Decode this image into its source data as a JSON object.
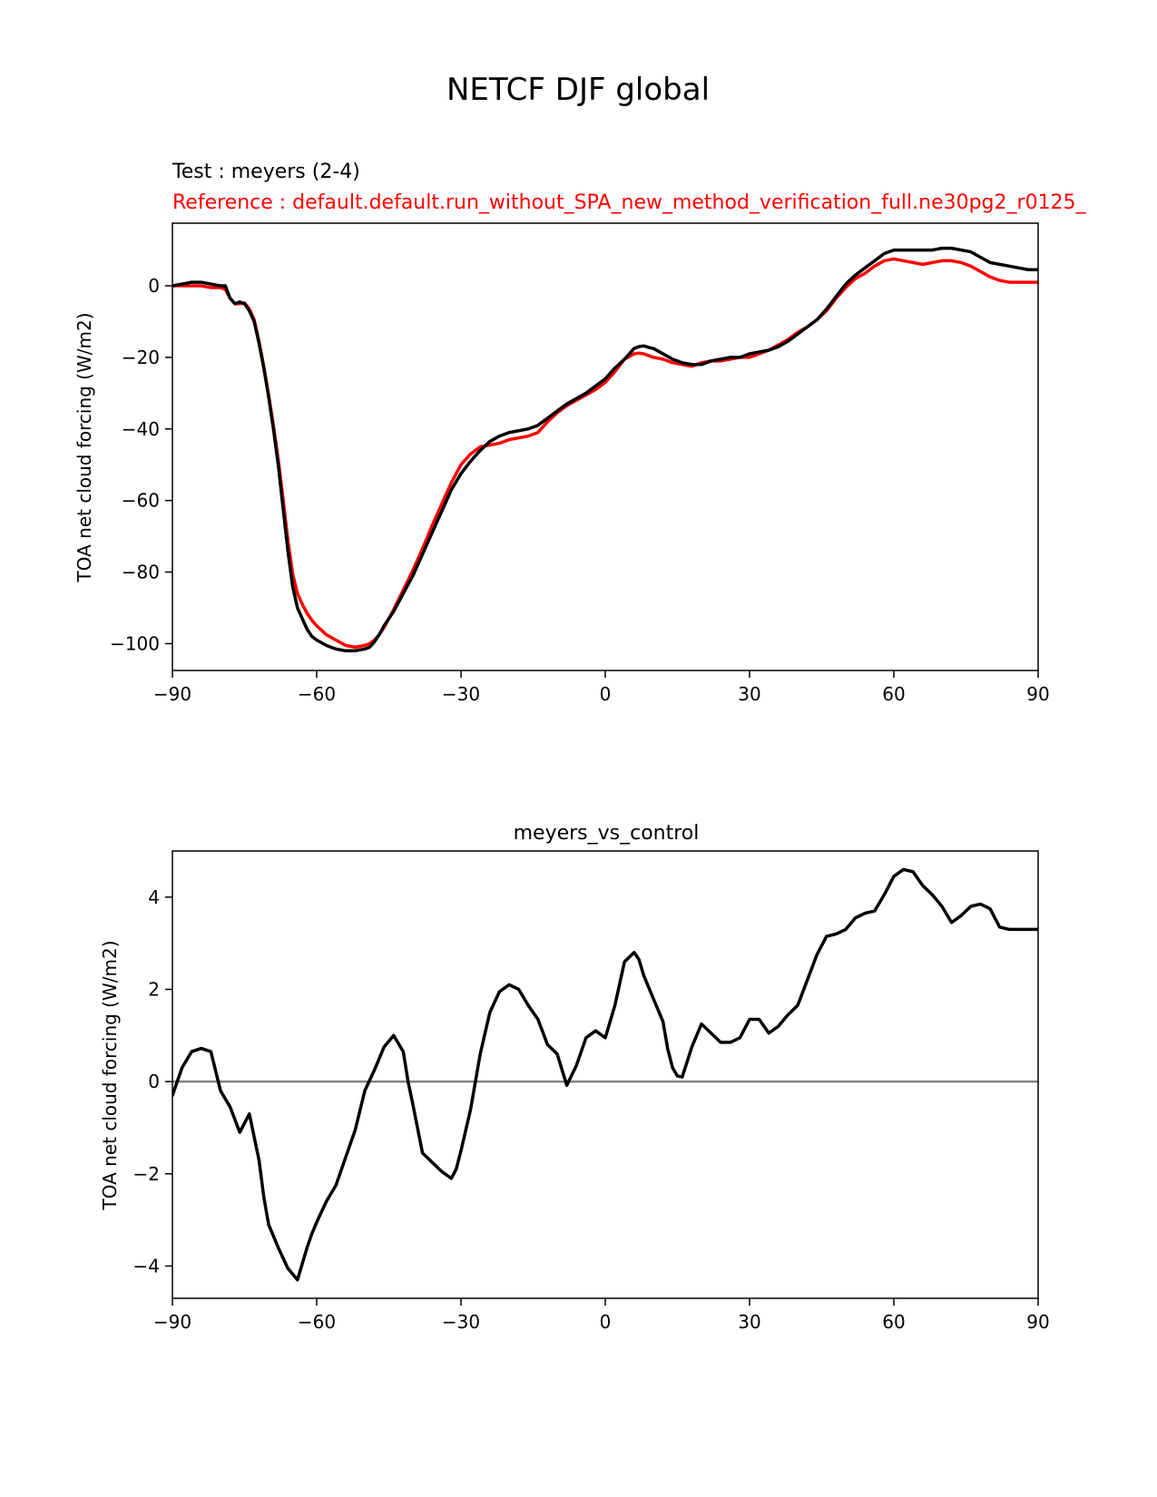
{
  "figure": {
    "title": "NETCF DJF global"
  },
  "colors": {
    "test": "#000000",
    "reference": "#ff0000",
    "zero_line": "#808080",
    "axis": "#000000"
  },
  "chart_data": [
    {
      "type": "line",
      "test_label": "Test : meyers (2-4)",
      "reference_label": "Reference : default.default.run_without_SPA_new_method_verification_full.ne30pg2_r0125_",
      "xlabel": "",
      "ylabel": "TOA net cloud forcing (W/m2)",
      "xlim": [
        -90,
        90
      ],
      "ylim": [
        -107.5,
        17.5
      ],
      "xticks": [
        -90,
        -60,
        -30,
        0,
        30,
        60,
        90
      ],
      "xtick_labels": [
        "−90",
        "−60",
        "−30",
        "0",
        "30",
        "60",
        "90"
      ],
      "yticks": [
        0,
        -20,
        -40,
        -60,
        -80,
        -100
      ],
      "ytick_labels": [
        "0",
        "−20",
        "−40",
        "−60",
        "−80",
        "−100"
      ],
      "series": [
        {
          "name": "Test",
          "color": "#000000",
          "x": [
            -90,
            -88,
            -86,
            -84,
            -82,
            -80,
            -79,
            -78,
            -77,
            -76,
            -75,
            -74,
            -73,
            -72,
            -71,
            -70,
            -69,
            -68,
            -67,
            -66,
            -65,
            -64,
            -63,
            -62,
            -61,
            -60,
            -58,
            -56,
            -54,
            -52,
            -50,
            -49,
            -48,
            -47,
            -46,
            -45,
            -44,
            -42,
            -40,
            -38,
            -36,
            -34,
            -32,
            -30,
            -28,
            -26,
            -24,
            -22,
            -20,
            -18,
            -16,
            -14,
            -12,
            -10,
            -8,
            -6,
            -4,
            -2,
            0,
            2,
            4,
            6,
            7,
            8,
            9,
            10,
            12,
            14,
            16,
            18,
            20,
            22,
            24,
            26,
            28,
            30,
            32,
            34,
            36,
            38,
            40,
            42,
            44,
            46,
            48,
            50,
            52,
            54,
            56,
            58,
            60,
            62,
            64,
            66,
            68,
            70,
            72,
            74,
            76,
            78,
            80,
            82,
            84,
            86,
            88,
            90
          ],
          "y": [
            0,
            0.5,
            1,
            1,
            0.5,
            0,
            0,
            -3.5,
            -5,
            -4.5,
            -5,
            -7,
            -10,
            -16,
            -23,
            -31,
            -40,
            -50,
            -62,
            -74,
            -84,
            -90,
            -93,
            -96,
            -98,
            -99,
            -100.5,
            -101.5,
            -102,
            -102,
            -101.5,
            -101,
            -99.5,
            -97.5,
            -95,
            -93,
            -91,
            -86,
            -81,
            -75,
            -69,
            -63,
            -57,
            -52.5,
            -49,
            -46,
            -43.5,
            -42,
            -41,
            -40.5,
            -40,
            -39,
            -37,
            -35,
            -33,
            -31.5,
            -30,
            -28,
            -26,
            -23,
            -20.5,
            -17.5,
            -17,
            -16.8,
            -17.2,
            -17.5,
            -19,
            -20.5,
            -21.5,
            -22,
            -22,
            -21,
            -20.5,
            -20,
            -20,
            -19,
            -18.5,
            -18,
            -17,
            -15.5,
            -13.5,
            -11.5,
            -9.5,
            -6.5,
            -3,
            0.5,
            3,
            5,
            7,
            9,
            10,
            10,
            10,
            10,
            10,
            10.5,
            10.5,
            10,
            9.5,
            8,
            6.5,
            6,
            5.5,
            5,
            4.5,
            4.5
          ]
        },
        {
          "name": "Reference",
          "color": "#ff0000",
          "x": [
            -90,
            -88,
            -86,
            -84,
            -82,
            -80,
            -79,
            -78,
            -77,
            -76,
            -75,
            -74,
            -73,
            -72,
            -71,
            -70,
            -69,
            -68,
            -67,
            -66,
            -65,
            -64,
            -63,
            -62,
            -61,
            -60,
            -58,
            -56,
            -54,
            -52,
            -50,
            -49,
            -48,
            -47,
            -46,
            -45,
            -44,
            -42,
            -40,
            -38,
            -36,
            -34,
            -32,
            -30,
            -28,
            -26,
            -24,
            -22,
            -20,
            -18,
            -16,
            -14,
            -12,
            -10,
            -8,
            -6,
            -4,
            -2,
            0,
            2,
            4,
            6,
            7,
            8,
            9,
            10,
            12,
            14,
            16,
            18,
            20,
            22,
            24,
            26,
            28,
            30,
            32,
            34,
            36,
            38,
            40,
            42,
            44,
            46,
            48,
            50,
            52,
            54,
            56,
            58,
            60,
            62,
            64,
            66,
            68,
            70,
            72,
            74,
            76,
            78,
            80,
            82,
            84,
            86,
            88,
            90
          ],
          "y": [
            0,
            0,
            0,
            0,
            -0.5,
            -0.5,
            -1,
            -3.5,
            -5,
            -5,
            -4.8,
            -6.5,
            -9.5,
            -15.5,
            -22.5,
            -30.5,
            -39,
            -48.5,
            -59.5,
            -71,
            -80.5,
            -86,
            -89,
            -91.5,
            -93.5,
            -95,
            -97.5,
            -99,
            -100.5,
            -101,
            -100.5,
            -100,
            -99,
            -97.5,
            -95.5,
            -93,
            -90.5,
            -85,
            -79.5,
            -73.5,
            -67,
            -61,
            -55,
            -50,
            -47,
            -45,
            -44.5,
            -44,
            -43,
            -42.5,
            -42,
            -41,
            -38,
            -35.5,
            -33.5,
            -32,
            -30.5,
            -29,
            -27,
            -24,
            -20.5,
            -19,
            -18.8,
            -19,
            -19.5,
            -20,
            -20.5,
            -21.5,
            -22,
            -22.5,
            -21.5,
            -21,
            -21,
            -20.5,
            -20,
            -20,
            -19,
            -18,
            -16.5,
            -15,
            -13,
            -11.5,
            -9.5,
            -7,
            -3.5,
            -0.5,
            2,
            3.5,
            5.5,
            7,
            7.5,
            7,
            6.5,
            6,
            6.5,
            7,
            7,
            6.5,
            5.5,
            4,
            2.5,
            1.5,
            1,
            1,
            1,
            1
          ]
        }
      ]
    },
    {
      "type": "line",
      "title": "meyers_vs_control",
      "xlabel": "",
      "ylabel": "TOA net cloud forcing (W/m2)",
      "xlim": [
        -90,
        90
      ],
      "ylim": [
        -4.7,
        5
      ],
      "xticks": [
        -90,
        -60,
        -30,
        0,
        30,
        60,
        90
      ],
      "xtick_labels": [
        "−90",
        "−60",
        "−30",
        "0",
        "30",
        "60",
        "90"
      ],
      "yticks": [
        4,
        2,
        0,
        -2,
        -4
      ],
      "ytick_labels": [
        "4",
        "2",
        "0",
        "−2",
        "−4"
      ],
      "zero_line": 0,
      "series": [
        {
          "name": "meyers_vs_control",
          "color": "#000000",
          "x": [
            -90,
            -88,
            -86,
            -84,
            -82,
            -80,
            -78,
            -76,
            -74,
            -72,
            -71,
            -70,
            -68,
            -66,
            -64,
            -62,
            -61,
            -60,
            -58,
            -56,
            -54,
            -52,
            -50,
            -48,
            -46,
            -44,
            -42,
            -41,
            -40,
            -38,
            -36,
            -34,
            -32,
            -31,
            -30,
            -28,
            -26,
            -24,
            -22,
            -20,
            -18,
            -16,
            -14,
            -12,
            -10,
            -8,
            -6,
            -4,
            -2,
            0,
            2,
            4,
            6,
            7,
            8,
            10,
            12,
            13,
            14,
            15,
            16,
            18,
            20,
            22,
            24,
            26,
            28,
            30,
            32,
            34,
            36,
            38,
            40,
            42,
            44,
            46,
            48,
            50,
            52,
            54,
            56,
            58,
            60,
            62,
            64,
            66,
            68,
            70,
            72,
            74,
            76,
            78,
            80,
            82,
            84,
            86,
            88,
            90
          ],
          "y": [
            -0.3,
            0.3,
            0.65,
            0.72,
            0.65,
            -0.2,
            -0.55,
            -1.1,
            -0.7,
            -1.7,
            -2.5,
            -3.1,
            -3.6,
            -4.05,
            -4.3,
            -3.6,
            -3.3,
            -3.05,
            -2.6,
            -2.25,
            -1.65,
            -1.05,
            -0.2,
            0.25,
            0.75,
            1,
            0.65,
            0,
            -0.5,
            -1.55,
            -1.75,
            -1.95,
            -2.1,
            -1.9,
            -1.5,
            -0.6,
            0.6,
            1.5,
            1.95,
            2.1,
            2,
            1.65,
            1.35,
            0.8,
            0.6,
            -0.08,
            0.35,
            0.95,
            1.1,
            0.95,
            1.65,
            2.6,
            2.8,
            2.65,
            2.3,
            1.8,
            1.3,
            0.7,
            0.3,
            0.12,
            0.1,
            0.75,
            1.25,
            1.05,
            0.85,
            0.85,
            0.95,
            1.35,
            1.35,
            1.05,
            1.2,
            1.45,
            1.65,
            2.2,
            2.75,
            3.15,
            3.2,
            3.3,
            3.55,
            3.65,
            3.7,
            4.05,
            4.45,
            4.6,
            4.55,
            4.25,
            4.05,
            3.8,
            3.45,
            3.6,
            3.8,
            3.85,
            3.75,
            3.35,
            3.3,
            3.3,
            3.3,
            3.3
          ]
        }
      ]
    }
  ]
}
